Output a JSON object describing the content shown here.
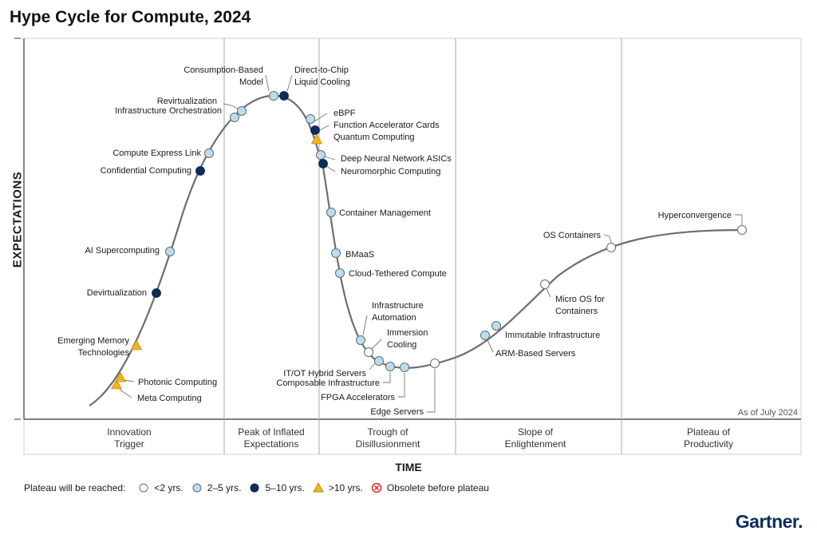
{
  "title": "Hype Cycle for Compute, 2024",
  "as_of": "As of July 2024",
  "brand": "Gartner",
  "colors": {
    "lt2": "#ffffff",
    "y2to5": "#b9def0",
    "y5to10": "#0d2d5a",
    "gt10": "#f2b51f",
    "stroke": "#6a6a6a",
    "curve": "#6e6e6e",
    "obsolete": "#d62b2b"
  },
  "legend": {
    "label": "Plateau will be reached:",
    "items": [
      {
        "key": "lt2",
        "label": "<2 yrs.",
        "shape": "circle"
      },
      {
        "key": "y2to5",
        "label": "2–5 yrs.",
        "shape": "circle"
      },
      {
        "key": "y5to10",
        "label": "5–10 yrs.",
        "shape": "circle"
      },
      {
        "key": "gt10",
        "label": ">10 yrs.",
        "shape": "triangle"
      },
      {
        "key": "obsolete",
        "label": "Obsolete before plateau",
        "shape": "x-circle"
      }
    ]
  },
  "chart_data": {
    "type": "scatter",
    "title": "Hype Cycle for Compute, 2024",
    "xlabel": "TIME",
    "ylabel": "EXPECTATIONS",
    "phases": [
      "Innovation Trigger",
      "Peak of Inflated Expectations",
      "Trough of Disillusionment",
      "Slope of Enlightenment",
      "Plateau of Productivity"
    ],
    "phase_lines": [
      [
        "Innovation",
        "Trigger"
      ],
      [
        "Peak of Inflated",
        "Expectations"
      ],
      [
        "Trough of",
        "Disillusionment"
      ],
      [
        "Slope of",
        "Enlightenment"
      ],
      [
        "Plateau of",
        "Productivity"
      ]
    ],
    "series": [
      {
        "key": "lt2",
        "name": "<2 yrs."
      },
      {
        "key": "y2to5",
        "name": "2–5 yrs."
      },
      {
        "key": "y5to10",
        "name": "5–10 yrs."
      },
      {
        "key": "gt10",
        "name": ">10 yrs."
      },
      {
        "key": "obsolete",
        "name": "Obsolete before plateau"
      }
    ],
    "technologies": [
      {
        "name": "Meta Computing",
        "phase": "Innovation Trigger",
        "plateau": "gt10"
      },
      {
        "name": "Photonic Computing",
        "phase": "Innovation Trigger",
        "plateau": "gt10"
      },
      {
        "name": "Emerging Memory Technologies",
        "phase": "Innovation Trigger",
        "plateau": "gt10"
      },
      {
        "name": "Devirtualization",
        "phase": "Innovation Trigger",
        "plateau": "y5to10"
      },
      {
        "name": "AI Supercomputing",
        "phase": "Innovation Trigger",
        "plateau": "y2to5"
      },
      {
        "name": "Confidential Computing",
        "phase": "Innovation Trigger",
        "plateau": "y5to10"
      },
      {
        "name": "Compute Express Link",
        "phase": "Innovation Trigger",
        "plateau": "y2to5"
      },
      {
        "name": "Infrastructure Orchestration",
        "phase": "Peak of Inflated Expectations",
        "plateau": "y2to5"
      },
      {
        "name": "Revirtualization",
        "phase": "Peak of Inflated Expectations",
        "plateau": "y2to5"
      },
      {
        "name": "Consumption-Based Model",
        "phase": "Peak of Inflated Expectations",
        "plateau": "y2to5"
      },
      {
        "name": "Direct-to-Chip Liquid Cooling",
        "phase": "Peak of Inflated Expectations",
        "plateau": "y5to10"
      },
      {
        "name": "eBPF",
        "phase": "Trough of Disillusionment",
        "plateau": "y2to5"
      },
      {
        "name": "Function Accelerator Cards",
        "phase": "Trough of Disillusionment",
        "plateau": "y5to10"
      },
      {
        "name": "Quantum Computing",
        "phase": "Trough of Disillusionment",
        "plateau": "gt10"
      },
      {
        "name": "Deep Neural Network ASICs",
        "phase": "Trough of Disillusionment",
        "plateau": "y2to5"
      },
      {
        "name": "Neuromorphic Computing",
        "phase": "Trough of Disillusionment",
        "plateau": "y5to10"
      },
      {
        "name": "Container Management",
        "phase": "Trough of Disillusionment",
        "plateau": "y2to5"
      },
      {
        "name": "BMaaS",
        "phase": "Trough of Disillusionment",
        "plateau": "y2to5"
      },
      {
        "name": "Cloud-Tethered Compute",
        "phase": "Trough of Disillusionment",
        "plateau": "y2to5"
      },
      {
        "name": "Infrastructure Automation",
        "phase": "Trough of Disillusionment",
        "plateau": "y2to5"
      },
      {
        "name": "Immersion Cooling",
        "phase": "Trough of Disillusionment",
        "plateau": "lt2"
      },
      {
        "name": "IT/OT Hybrid Servers",
        "phase": "Trough of Disillusionment",
        "plateau": "y2to5"
      },
      {
        "name": "Composable Infrastructure",
        "phase": "Trough of Disillusionment",
        "plateau": "y2to5"
      },
      {
        "name": "FPGA Accelerators",
        "phase": "Trough of Disillusionment",
        "plateau": "y2to5"
      },
      {
        "name": "Edge Servers",
        "phase": "Trough of Disillusionment",
        "plateau": "lt2"
      },
      {
        "name": "ARM-Based Servers",
        "phase": "Slope of Enlightenment",
        "plateau": "y2to5"
      },
      {
        "name": "Immutable Infrastructure",
        "phase": "Slope of Enlightenment",
        "plateau": "y2to5"
      },
      {
        "name": "Micro OS for Containers",
        "phase": "Slope of Enlightenment",
        "plateau": "lt2"
      },
      {
        "name": "OS Containers",
        "phase": "Slope of Enlightenment",
        "plateau": "lt2"
      },
      {
        "name": "Hyperconvergence",
        "phase": "Plateau of Productivity",
        "plateau": "lt2"
      }
    ]
  }
}
